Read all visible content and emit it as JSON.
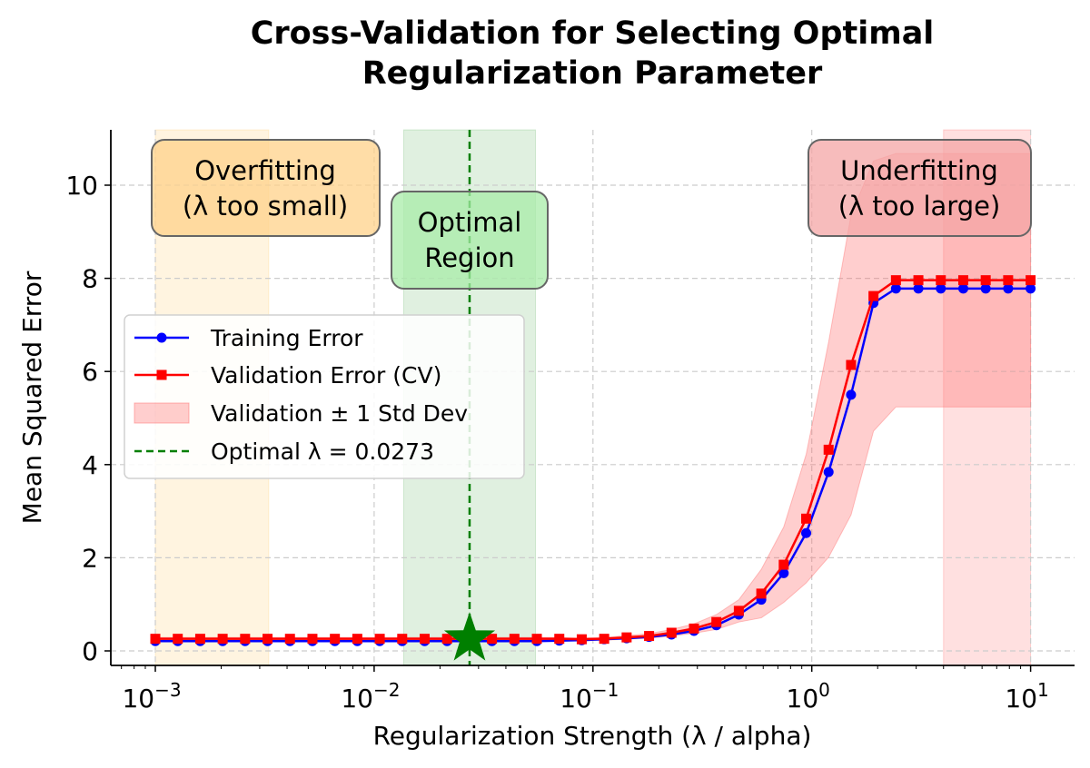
{
  "chart_data": {
    "type": "line",
    "title": "Cross-Validation for Selecting Optimal\nRegularization Parameter",
    "title_lines": [
      "Cross-Validation for Selecting Optimal",
      "Regularization Parameter"
    ],
    "xlabel": "Regularization Strength (λ / alpha)",
    "ylabel": "Mean Squared Error",
    "x_scale": "log",
    "xlim": [
      0.0007,
      15
    ],
    "ylim": [
      -0.31,
      11.19
    ],
    "x_ticks": [
      {
        "base": "10",
        "exp": "−3"
      },
      {
        "base": "10",
        "exp": "−2"
      },
      {
        "base": "10",
        "exp": "−1"
      },
      {
        "base": "10",
        "exp": "0"
      },
      {
        "base": "10",
        "exp": "1"
      }
    ],
    "y_ticks": [
      "0",
      "2",
      "4",
      "6",
      "8",
      "10"
    ],
    "grid": true,
    "x_logspace": {
      "start_exp": -3,
      "end_exp": 1,
      "count": 40
    },
    "series": [
      {
        "name": "Training Error",
        "color": "#0000ff",
        "marker": "circle",
        "values": [
          0.21,
          0.21,
          0.21,
          0.21,
          0.21,
          0.21,
          0.21,
          0.21,
          0.21,
          0.21,
          0.21,
          0.21,
          0.21,
          0.21,
          0.21,
          0.21,
          0.21,
          0.21,
          0.22,
          0.23,
          0.25,
          0.27,
          0.3,
          0.35,
          0.43,
          0.55,
          0.78,
          1.1,
          1.67,
          2.53,
          3.84,
          5.5,
          7.47,
          7.78,
          7.78,
          7.78,
          7.78,
          7.78,
          7.78,
          7.78
        ]
      },
      {
        "name": "Validation Error (CV)",
        "color": "#ff0000",
        "marker": "square",
        "values": [
          0.26,
          0.26,
          0.26,
          0.26,
          0.26,
          0.26,
          0.26,
          0.26,
          0.26,
          0.26,
          0.26,
          0.26,
          0.26,
          0.26,
          0.26,
          0.26,
          0.26,
          0.26,
          0.26,
          0.25,
          0.26,
          0.29,
          0.32,
          0.39,
          0.48,
          0.62,
          0.86,
          1.23,
          1.85,
          2.84,
          4.32,
          6.14,
          7.62,
          7.96,
          7.96,
          7.96,
          7.96,
          7.96,
          7.96,
          7.96
        ]
      }
    ],
    "band": {
      "name": "Validation ± 1 Std Dev",
      "color": "#ff6b6b",
      "std": [
        0.03,
        0.03,
        0.03,
        0.03,
        0.03,
        0.03,
        0.03,
        0.03,
        0.03,
        0.03,
        0.03,
        0.03,
        0.03,
        0.03,
        0.03,
        0.03,
        0.03,
        0.03,
        0.03,
        0.03,
        0.03,
        0.04,
        0.05,
        0.07,
        0.1,
        0.16,
        0.24,
        0.52,
        0.81,
        1.38,
        2.31,
        3.22,
        2.9,
        2.72,
        2.72,
        2.72,
        2.72,
        2.72,
        2.72,
        2.72
      ]
    },
    "optimal": {
      "label": "Optimal λ = 0.0273",
      "value": 0.0273,
      "error": 0.26,
      "color": "#007f00"
    },
    "regions": [
      {
        "name": "overfitting",
        "range": [
          0.001,
          0.0033
        ],
        "color": "#ffa500"
      },
      {
        "name": "optimal",
        "range": [
          0.01365,
          0.0546
        ],
        "color": "#008000"
      },
      {
        "name": "underfitting",
        "range": [
          4,
          10
        ],
        "color": "#ff0000"
      }
    ],
    "annotations": [
      {
        "name": "overfitting",
        "lines": [
          "Overfitting",
          "(λ too small)"
        ],
        "color": "#ffd18a"
      },
      {
        "name": "optimal",
        "lines": [
          "Optimal",
          "Region"
        ],
        "color": "#a8eca8"
      },
      {
        "name": "underfitting",
        "lines": [
          "Underfitting",
          "(λ too large)"
        ],
        "color": "#f4a6a6"
      }
    ],
    "legend": {
      "placement": "center-left",
      "entries": [
        "Training Error",
        "Validation Error (CV)",
        "Validation ± 1 Std Dev",
        "Optimal λ = 0.0273"
      ]
    }
  }
}
